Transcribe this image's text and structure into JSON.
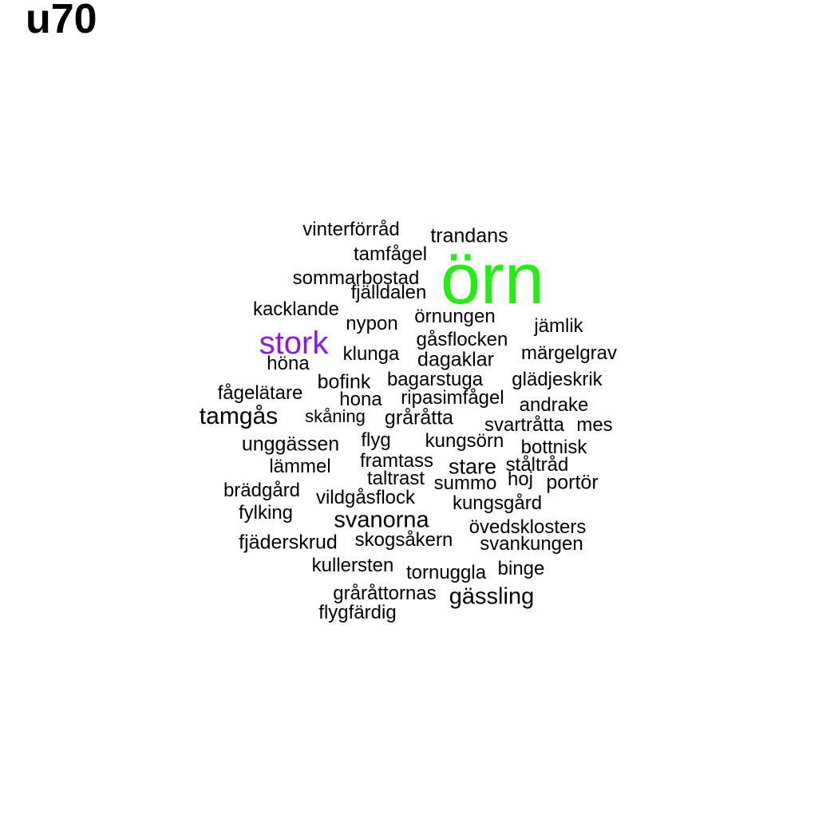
{
  "title": "u70",
  "cloud": {
    "words": [
      {
        "text": "örn",
        "color": "#22ee11"
      },
      {
        "text": "stork",
        "color": "#8b18e8"
      },
      {
        "text": "tamgås",
        "color": "#000000"
      },
      {
        "text": "svanorna",
        "color": "#000000"
      },
      {
        "text": "gässling",
        "color": "#000000"
      },
      {
        "text": "trandans",
        "color": "#000000"
      },
      {
        "text": "vinterförråd",
        "color": "#000000"
      },
      {
        "text": "tamfågel",
        "color": "#000000"
      },
      {
        "text": "sommarbostad",
        "color": "#000000"
      },
      {
        "text": "fjälldalen",
        "color": "#000000"
      },
      {
        "text": "kacklande",
        "color": "#000000"
      },
      {
        "text": "nypon",
        "color": "#000000"
      },
      {
        "text": "örnungen",
        "color": "#000000"
      },
      {
        "text": "jämlik",
        "color": "#000000"
      },
      {
        "text": "gåsflocken",
        "color": "#000000"
      },
      {
        "text": "klunga",
        "color": "#000000"
      },
      {
        "text": "dagaklar",
        "color": "#000000"
      },
      {
        "text": "märgelgrav",
        "color": "#000000"
      },
      {
        "text": "höna",
        "color": "#000000"
      },
      {
        "text": "bofink",
        "color": "#000000"
      },
      {
        "text": "bagarstuga",
        "color": "#000000"
      },
      {
        "text": "glädjeskrik",
        "color": "#000000"
      },
      {
        "text": "fågelätare",
        "color": "#000000"
      },
      {
        "text": "hona",
        "color": "#000000"
      },
      {
        "text": "ripasimfågel",
        "color": "#000000"
      },
      {
        "text": "andrake",
        "color": "#000000"
      },
      {
        "text": "skåning",
        "color": "#000000"
      },
      {
        "text": "gråråtta",
        "color": "#000000"
      },
      {
        "text": "svartråtta",
        "color": "#000000"
      },
      {
        "text": "mes",
        "color": "#000000"
      },
      {
        "text": "unggässen",
        "color": "#000000"
      },
      {
        "text": "flyg",
        "color": "#000000"
      },
      {
        "text": "kungsörn",
        "color": "#000000"
      },
      {
        "text": "bottnisk",
        "color": "#000000"
      },
      {
        "text": "lämmel",
        "color": "#000000"
      },
      {
        "text": "framtass",
        "color": "#000000"
      },
      {
        "text": "stare",
        "color": "#000000"
      },
      {
        "text": "ståltråd",
        "color": "#000000"
      },
      {
        "text": "taltrast",
        "color": "#000000"
      },
      {
        "text": "hoj",
        "color": "#000000"
      },
      {
        "text": "summo",
        "color": "#000000"
      },
      {
        "text": "portör",
        "color": "#000000"
      },
      {
        "text": "brädgård",
        "color": "#000000"
      },
      {
        "text": "vildgåsflock",
        "color": "#000000"
      },
      {
        "text": "kungsgård",
        "color": "#000000"
      },
      {
        "text": "fylking",
        "color": "#000000"
      },
      {
        "text": "övedsklosters",
        "color": "#000000"
      },
      {
        "text": "fjäderskrud",
        "color": "#000000"
      },
      {
        "text": "skogsåkern",
        "color": "#000000"
      },
      {
        "text": "svankungen",
        "color": "#000000"
      },
      {
        "text": "kullersten",
        "color": "#000000"
      },
      {
        "text": "tornuggla",
        "color": "#000000"
      },
      {
        "text": "binge",
        "color": "#000000"
      },
      {
        "text": "gråråttornas",
        "color": "#000000"
      },
      {
        "text": "flygfärdig",
        "color": "#000000"
      }
    ]
  }
}
